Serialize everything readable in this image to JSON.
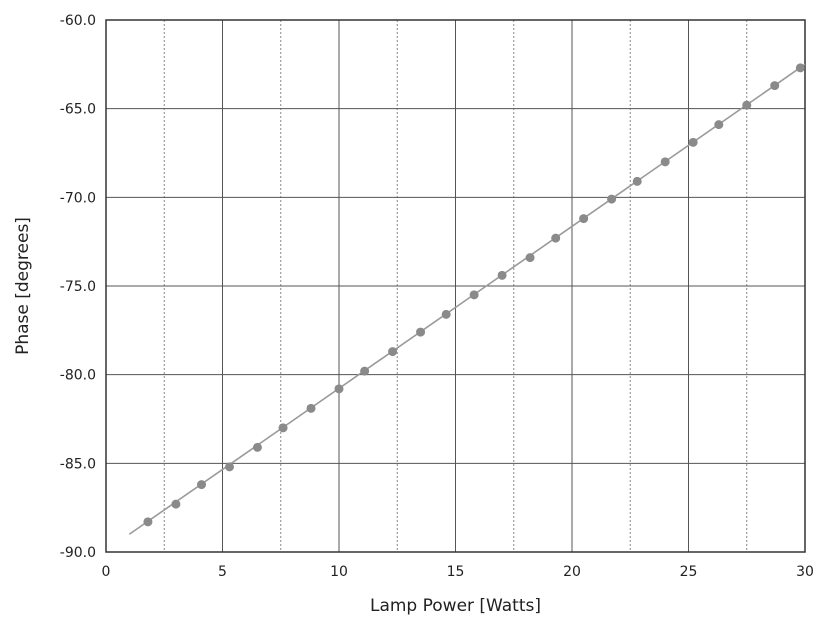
{
  "chart_data": {
    "type": "line",
    "title": "",
    "xlabel": "Lamp Power [Watts]",
    "ylabel": "Phase [degrees]",
    "xlim": [
      0,
      30
    ],
    "ylim": [
      -90,
      -60
    ],
    "x_ticks": [
      "0",
      "5",
      "10",
      "15",
      "20",
      "25",
      "30"
    ],
    "y_ticks": [
      "-60.0",
      "-65.0",
      "-70.0",
      "-75.0",
      "-80.0",
      "-85.0",
      "-90.0"
    ],
    "grid": true,
    "legend": "none",
    "colors": {
      "points": "#8a8a8a",
      "line": "#9a9a9a",
      "grid_major": "#555555",
      "grid_minor": "#888888"
    },
    "series": [
      {
        "kind": "scatter",
        "x": [
          1.8,
          3.0,
          4.1,
          5.3,
          6.5,
          7.6,
          8.8,
          10.0,
          11.1,
          12.3,
          13.5,
          14.6,
          15.8,
          17.0,
          18.2,
          19.3,
          20.5,
          21.7,
          22.8,
          24.0,
          25.2,
          26.3,
          27.5,
          28.7,
          29.8
        ],
        "y": [
          -88.3,
          -87.3,
          -86.2,
          -85.2,
          -84.1,
          -83.0,
          -81.9,
          -80.8,
          -79.8,
          -78.7,
          -77.6,
          -76.6,
          -75.5,
          -74.4,
          -73.4,
          -72.3,
          -71.2,
          -70.1,
          -69.1,
          -68.0,
          -66.9,
          -65.9,
          -64.8,
          -63.7,
          -62.7
        ]
      },
      {
        "kind": "fit-line",
        "x": [
          1.0,
          30.0
        ],
        "y": [
          -89.0,
          -62.5
        ]
      }
    ]
  }
}
